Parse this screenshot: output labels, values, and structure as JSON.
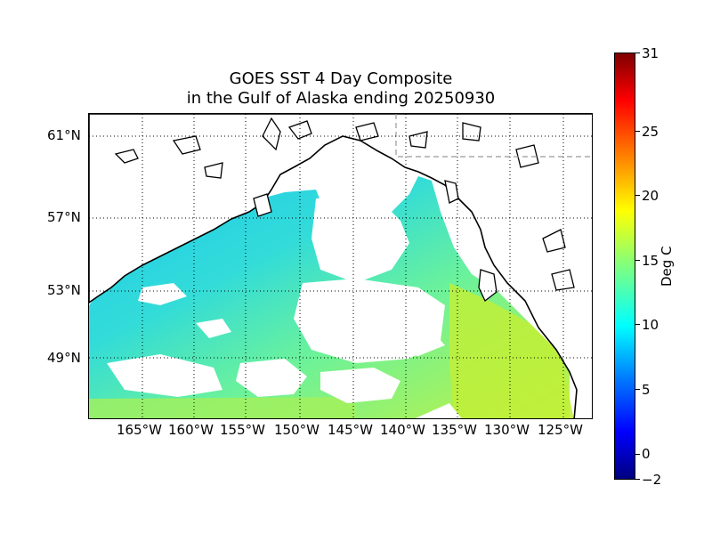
{
  "title_line1": "GOES SST 4 Day Composite",
  "title_line2": "in the Gulf of Alaska ending 20250930",
  "lat_labels": [
    "61°N",
    "57°N",
    "53°N",
    "49°N"
  ],
  "lon_labels": [
    "165°W",
    "160°W",
    "155°W",
    "150°W",
    "145°W",
    "140°W",
    "135°W",
    "130°W",
    "125°W"
  ],
  "colorbar": {
    "label": "Deg C",
    "ticks": [
      "31",
      "25",
      "20",
      "15",
      "10",
      "5",
      "0",
      "−2"
    ],
    "min": -2,
    "max": 31
  },
  "colors": {
    "cool_sst": "#33d6e6",
    "mid_sst": "#7fff9a",
    "warm_sst": "#c8f53a",
    "land": "#ffffff",
    "coast": "#000000"
  }
}
